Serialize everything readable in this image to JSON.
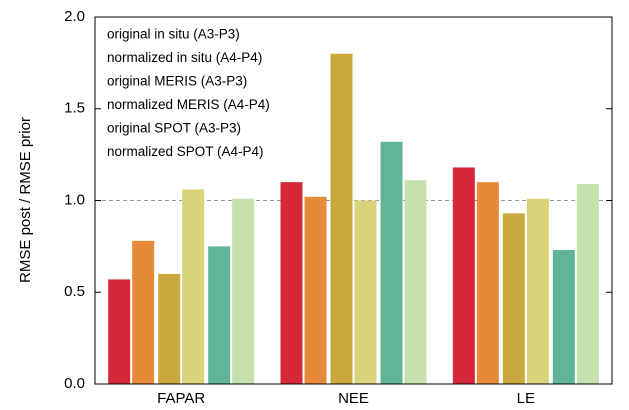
{
  "chart_data": {
    "type": "bar",
    "y_label": "RMSE post / RMSE prior",
    "categories": [
      "FAPAR",
      "NEE",
      "LE"
    ],
    "series": [
      {
        "name": "original in situ (A3-P3)",
        "color": "#d62738",
        "values": [
          0.57,
          1.1,
          1.18
        ]
      },
      {
        "name": "normalized in situ (A4-P4)",
        "color": "#e68a3a",
        "values": [
          0.78,
          1.02,
          1.1
        ]
      },
      {
        "name": "original MERIS (A3-P3)",
        "color": "#c9a83e",
        "values": [
          0.6,
          1.8,
          0.93
        ]
      },
      {
        "name": "normalized MERIS (A4-P4)",
        "color": "#d9d37a",
        "values": [
          1.06,
          1.0,
          1.01
        ]
      },
      {
        "name": "original SPOT (A3-P3)",
        "color": "#5fb596",
        "values": [
          0.75,
          1.32,
          0.73
        ]
      },
      {
        "name": "normalized SPOT (A4-P4)",
        "color": "#c5e1ad",
        "values": [
          1.01,
          1.11,
          1.09
        ]
      }
    ],
    "ylim": [
      0,
      2
    ],
    "yticks": [
      {
        "value": 0,
        "label": "0.0"
      },
      0.5,
      {
        "value": 1,
        "label": "1.0"
      },
      1.5,
      {
        "value": 2,
        "label": "2.0"
      }
    ],
    "reference_line": 1,
    "legend": "upper left"
  }
}
